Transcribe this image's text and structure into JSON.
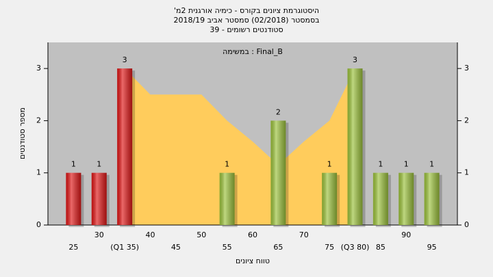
{
  "chart_data": {
    "type": "bar",
    "title": [
      "'היסטוגרמת ציונים בקורס - כימיה אורגנית 2מ",
      "בסמסטר  (02/2018)  סמסטר אביב 2018/19",
      "סטודנטים רשומים - 39"
    ],
    "subtitle": "במשימה : Final_B",
    "x_label": "טווח ציונים",
    "y_label": "מספר סטודנטים",
    "categories": [
      "25",
      "30",
      "(Q1 35)",
      "40",
      "45",
      "50",
      "55",
      "60",
      "65",
      "70",
      "75",
      "(Q3 80)",
      "85",
      "90",
      "95"
    ],
    "values": [
      1,
      1,
      3,
      0,
      0,
      0,
      1,
      0,
      2,
      0,
      1,
      3,
      1,
      1,
      1
    ],
    "bar_colors": [
      "#e01818",
      "#e01818",
      "#e01818",
      "#9cc23c",
      "#9cc23c",
      "#9cc23c",
      "#9cc23c",
      "#9cc23c",
      "#9cc23c",
      "#9cc23c",
      "#9cc23c",
      "#9cc23c",
      "#9cc23c",
      "#9cc23c",
      "#9cc23c"
    ],
    "area": {
      "color": "#ffcc5c",
      "values": [
        null,
        null,
        3,
        2.5,
        2.5,
        2.5,
        2,
        1.6,
        1.15,
        1.6,
        2,
        3,
        null,
        null,
        null
      ]
    },
    "ylim": [
      0,
      3.5
    ],
    "yticks": [
      0,
      1,
      2,
      3
    ],
    "grid": true
  }
}
